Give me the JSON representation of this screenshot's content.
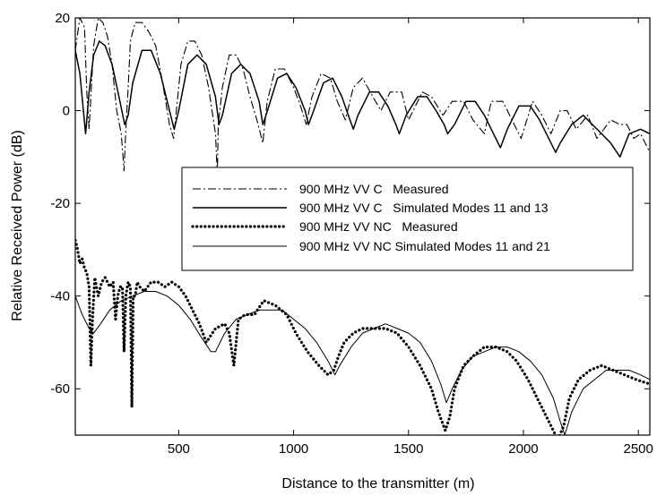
{
  "chart_data": {
    "type": "line",
    "title": "",
    "xlabel": "Distance to the transmitter (m)",
    "ylabel": "Relative Received Power (dB)",
    "xlim": [
      50,
      2550
    ],
    "ylim": [
      -70,
      20
    ],
    "x_ticks": [
      500,
      1000,
      1500,
      2000,
      2500
    ],
    "y_ticks": [
      20,
      0,
      -20,
      -40,
      -60
    ],
    "x_tick_labels": [
      "500",
      "1000",
      "1500",
      "2000",
      "2500"
    ],
    "y_tick_labels": [
      "20",
      "0",
      "-20",
      "-40",
      "-60"
    ],
    "grid": false,
    "legend_position": "center-right",
    "series": [
      {
        "name": "900 MHz VV C   Measured",
        "style": "dash-dot",
        "color": "#000000",
        "x": [
          50,
          70,
          90,
          100,
          110,
          130,
          150,
          170,
          190,
          210,
          230,
          250,
          262,
          270,
          280,
          290,
          310,
          340,
          370,
          400,
          430,
          460,
          478,
          490,
          510,
          540,
          570,
          600,
          630,
          660,
          668,
          672,
          690,
          720,
          750,
          780,
          810,
          840,
          866,
          885,
          920,
          960,
          1000,
          1030,
          1055,
          1080,
          1120,
          1160,
          1190,
          1225,
          1260,
          1300,
          1345,
          1380,
          1420,
          1470,
          1500,
          1560,
          1600,
          1650,
          1690,
          1740,
          1780,
          1830,
          1860,
          1910,
          1950,
          1990,
          2040,
          2080,
          2120,
          2160,
          2190,
          2230,
          2280,
          2320,
          2380,
          2420,
          2450,
          2480,
          2510,
          2550
        ],
        "y": [
          13,
          20,
          18,
          4,
          -4,
          14,
          20,
          19,
          16,
          10,
          0,
          -5,
          -13,
          -4,
          5,
          15,
          19,
          19,
          17,
          14,
          6,
          -3,
          -6,
          0,
          10,
          15,
          15,
          12,
          5,
          -5,
          -14,
          -3,
          5,
          12,
          12,
          9,
          3,
          -2,
          -7,
          2,
          9,
          9,
          5,
          1,
          -3,
          3,
          8,
          7,
          2,
          -2,
          5,
          7,
          3,
          0,
          4,
          4,
          -2,
          4,
          3,
          -1,
          2,
          2,
          -2,
          -5,
          2,
          2,
          -2,
          -6,
          2,
          -1,
          -5,
          0,
          0,
          -4,
          -1,
          -6,
          -2,
          -3,
          -3,
          -6,
          -5,
          -9
        ]
      },
      {
        "name": "900 MHz VV C   Simulated Modes 11 and 13",
        "style": "solid",
        "color": "#000000",
        "x": [
          50,
          70,
          95,
          110,
          130,
          155,
          180,
          210,
          240,
          265,
          280,
          300,
          340,
          380,
          420,
          460,
          480,
          500,
          540,
          580,
          620,
          660,
          675,
          690,
          730,
          770,
          810,
          850,
          866,
          880,
          930,
          970,
          1010,
          1050,
          1065,
          1080,
          1130,
          1170,
          1210,
          1245,
          1260,
          1280,
          1330,
          1370,
          1410,
          1445,
          1460,
          1490,
          1540,
          1580,
          1620,
          1655,
          1670,
          1700,
          1750,
          1790,
          1830,
          1870,
          1900,
          1930,
          1980,
          2030,
          2070,
          2110,
          2140,
          2160,
          2210,
          2260,
          2300,
          2340,
          2380,
          2420,
          2460,
          2510,
          2550
        ],
        "y": [
          13,
          8,
          -5,
          4,
          12,
          15,
          14,
          10,
          3,
          -3,
          -1,
          6,
          13,
          13,
          8,
          0,
          -4,
          0,
          10,
          12,
          10,
          3,
          -3,
          -1,
          8,
          10,
          8,
          2,
          -3,
          -1,
          7,
          8,
          5,
          0,
          -3,
          -1,
          6,
          7,
          3,
          -2,
          -4,
          -1,
          4,
          4,
          1,
          -3,
          -5,
          -1,
          3,
          3,
          0,
          -3,
          -5,
          -3,
          2,
          2,
          -1,
          -5,
          -8,
          -4,
          1,
          1,
          -2,
          -6,
          -9,
          -7,
          -3,
          -1,
          -3,
          -5,
          -7,
          -10,
          -5,
          -4,
          -5
        ]
      },
      {
        "name": "900 MHz VV NC   Measured",
        "style": "dotted",
        "color": "#000000",
        "x": [
          50,
          60,
          70,
          80,
          90,
          100,
          110,
          118,
          125,
          135,
          150,
          165,
          180,
          200,
          215,
          225,
          235,
          245,
          255,
          262,
          270,
          280,
          290,
          296,
          302,
          310,
          320,
          330,
          350,
          380,
          410,
          440,
          470,
          500,
          530,
          560,
          590,
          620,
          660,
          700,
          720,
          740,
          760,
          790,
          830,
          870,
          920,
          970,
          1010,
          1060,
          1110,
          1150,
          1175,
          1195,
          1220,
          1260,
          1300,
          1350,
          1400,
          1450,
          1500,
          1550,
          1600,
          1630,
          1660,
          1680,
          1700,
          1740,
          1780,
          1830,
          1880,
          1930,
          1970,
          2020,
          2070,
          2110,
          2150,
          2175,
          2200,
          2240,
          2290,
          2340,
          2390,
          2440,
          2490,
          2550
        ],
        "y": [
          -28,
          -30,
          -33,
          -32,
          -34,
          -35,
          -38,
          -55,
          -45,
          -36,
          -40,
          -37,
          -36,
          -38,
          -37,
          -45,
          -40,
          -38,
          -38,
          -52,
          -40,
          -37,
          -38,
          -64,
          -40,
          -40,
          -37,
          -38,
          -39,
          -37,
          -37,
          -38,
          -37,
          -38,
          -40,
          -43,
          -46,
          -50,
          -47,
          -46,
          -48,
          -55,
          -45,
          -44,
          -44,
          -41,
          -42,
          -44,
          -48,
          -52,
          -55,
          -57,
          -56,
          -53,
          -50,
          -48,
          -47,
          -47,
          -47,
          -48,
          -51,
          -55,
          -60,
          -65,
          -69,
          -66,
          -60,
          -55,
          -53,
          -51,
          -51,
          -52,
          -54,
          -58,
          -63,
          -67,
          -71,
          -68,
          -62,
          -58,
          -56,
          -55,
          -56,
          -57,
          -58,
          -59
        ]
      },
      {
        "name": "900 MHz VV NC Simulated Modes 11 and 21",
        "style": "solid-thin",
        "color": "#000000",
        "x": [
          50,
          80,
          110,
          130,
          160,
          200,
          250,
          300,
          350,
          400,
          450,
          500,
          550,
          600,
          640,
          660,
          700,
          750,
          800,
          850,
          900,
          950,
          1000,
          1050,
          1100,
          1150,
          1180,
          1200,
          1250,
          1300,
          1350,
          1400,
          1450,
          1500,
          1550,
          1600,
          1640,
          1665,
          1690,
          1730,
          1780,
          1830,
          1880,
          1930,
          1980,
          2030,
          2080,
          2130,
          2160,
          2180,
          2210,
          2260,
          2310,
          2360,
          2410,
          2460,
          2510,
          2550
        ],
        "y": [
          -40,
          -44,
          -47,
          -48,
          -46,
          -43,
          -41,
          -40,
          -39,
          -39,
          -40,
          -42,
          -45,
          -49,
          -52,
          -52,
          -48,
          -45,
          -44,
          -43,
          -43,
          -43,
          -45,
          -47,
          -50,
          -54,
          -57,
          -55,
          -51,
          -48,
          -47,
          -46,
          -47,
          -48,
          -50,
          -54,
          -59,
          -63,
          -60,
          -56,
          -53,
          -52,
          -51,
          -51,
          -52,
          -54,
          -57,
          -62,
          -67,
          -70,
          -65,
          -60,
          -58,
          -56,
          -56,
          -56,
          -57,
          -58
        ]
      }
    ]
  }
}
